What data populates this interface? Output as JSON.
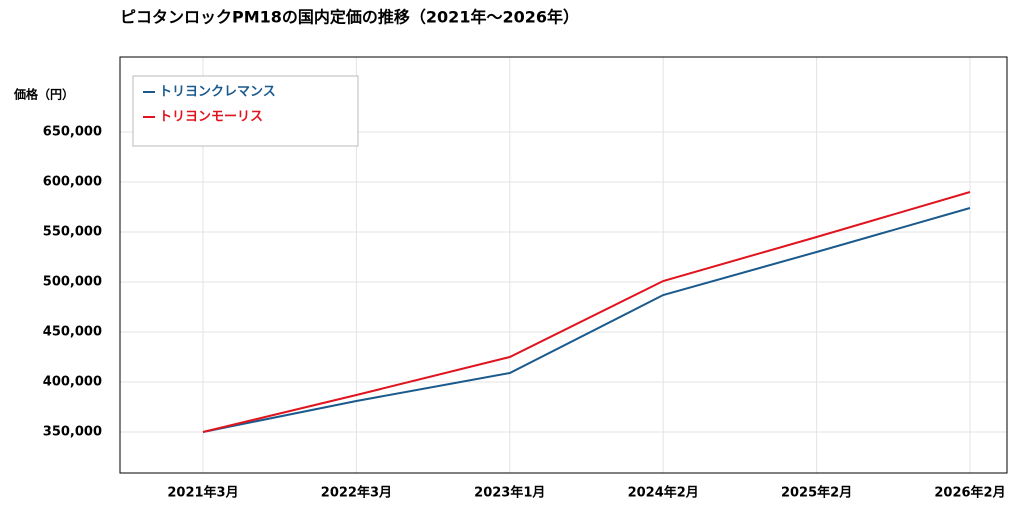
{
  "chart_data": {
    "type": "line",
    "title": "ピコタンロックPM18の国内定価の推移（2021年〜2026年）",
    "y_label": "価格（円）",
    "categories": [
      "2021年3月",
      "2022年3月",
      "2023年1月",
      "2024年2月",
      "2025年2月",
      "2026年2月"
    ],
    "series": [
      {
        "name": "トリヨンクレマンス",
        "color": "#1a5a8c",
        "values": [
          350000,
          381000,
          409000,
          487000,
          530000,
          574000
        ]
      },
      {
        "name": "トリヨンモーリス",
        "color": "#e0141e",
        "values": [
          350000,
          387000,
          425000,
          501000,
          545000,
          590000
        ]
      }
    ],
    "ylim": [
      309000,
      725000
    ],
    "yticks": [
      {
        "value": 350000,
        "label": "350,000"
      },
      {
        "value": 400000,
        "label": "400,000"
      },
      {
        "value": 450000,
        "label": "450,000"
      },
      {
        "value": 500000,
        "label": "500,000"
      },
      {
        "value": 550000,
        "label": "550,000"
      },
      {
        "value": 600000,
        "label": "600,000"
      },
      {
        "value": 650000,
        "label": "650,000"
      }
    ],
    "grid": true,
    "legend": "upper-left"
  }
}
